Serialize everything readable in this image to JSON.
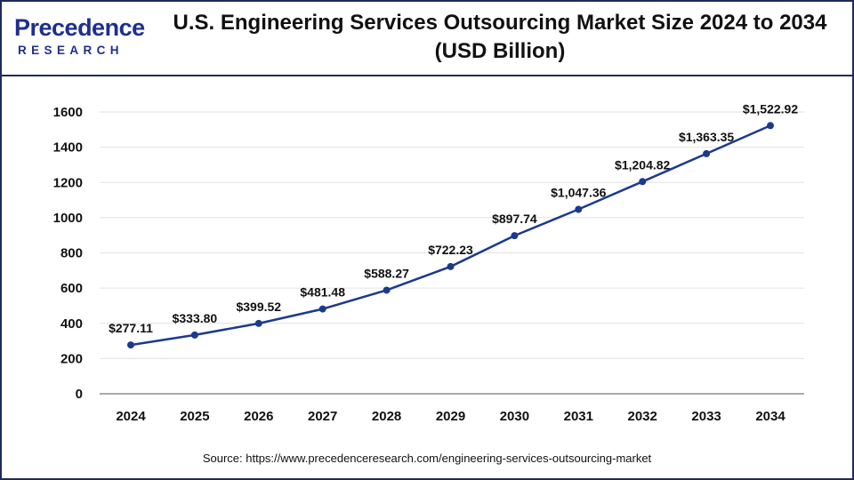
{
  "brand": {
    "name_main": "Precedence",
    "name_sub": "RESEARCH"
  },
  "header": {
    "title_line1": "U.S. Engineering Services Outsourcing Market Size 2024 to 2034",
    "title_line2": "(USD Billion)"
  },
  "colors": {
    "line": "#1b3a8c",
    "marker": "#1b3a8c",
    "grid": "#e2e2e2",
    "axis": "#555555",
    "brand": "#1e2f8f"
  },
  "chart_data": {
    "type": "line",
    "title": "U.S. Engineering Services Outsourcing Market Size 2024 to 2034 (USD Billion)",
    "xlabel": "",
    "ylabel": "",
    "categories": [
      "2024",
      "2025",
      "2026",
      "2027",
      "2028",
      "2029",
      "2030",
      "2031",
      "2032",
      "2033",
      "2034"
    ],
    "values": [
      277.11,
      333.8,
      399.52,
      481.48,
      588.27,
      722.23,
      897.74,
      1047.36,
      1204.82,
      1363.35,
      1522.92
    ],
    "data_labels": [
      "$277.11",
      "$333.80",
      "$399.52",
      "$481.48",
      "$588.27",
      "$722.23",
      "$897.74",
      "$1,047.36",
      "$1,204.82",
      "$1,363.35",
      "$1,522.92"
    ],
    "ylim": [
      0,
      1600
    ],
    "yticks": [
      "0",
      "200",
      "400",
      "600",
      "800",
      "1000",
      "1200",
      "1400",
      "1600"
    ],
    "grid": true,
    "legend": "none"
  },
  "footer": {
    "source": "Source: https://www.precedenceresearch.com/engineering-services-outsourcing-market"
  }
}
